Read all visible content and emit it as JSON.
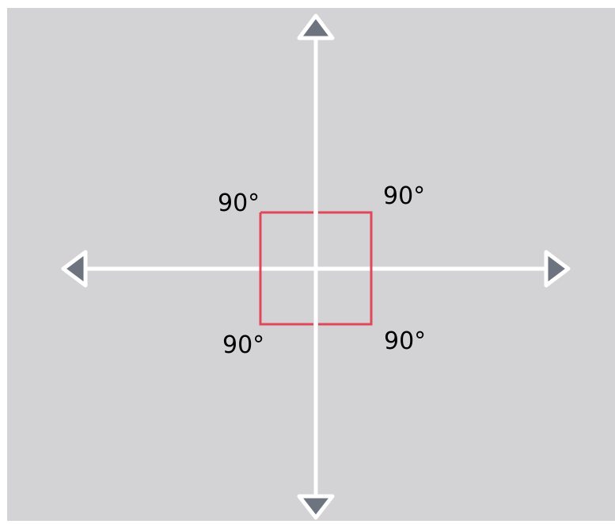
{
  "angles": [
    {
      "label": "90°"
    },
    {
      "label": "90°"
    },
    {
      "label": "90°"
    },
    {
      "label": "90°"
    }
  ]
}
